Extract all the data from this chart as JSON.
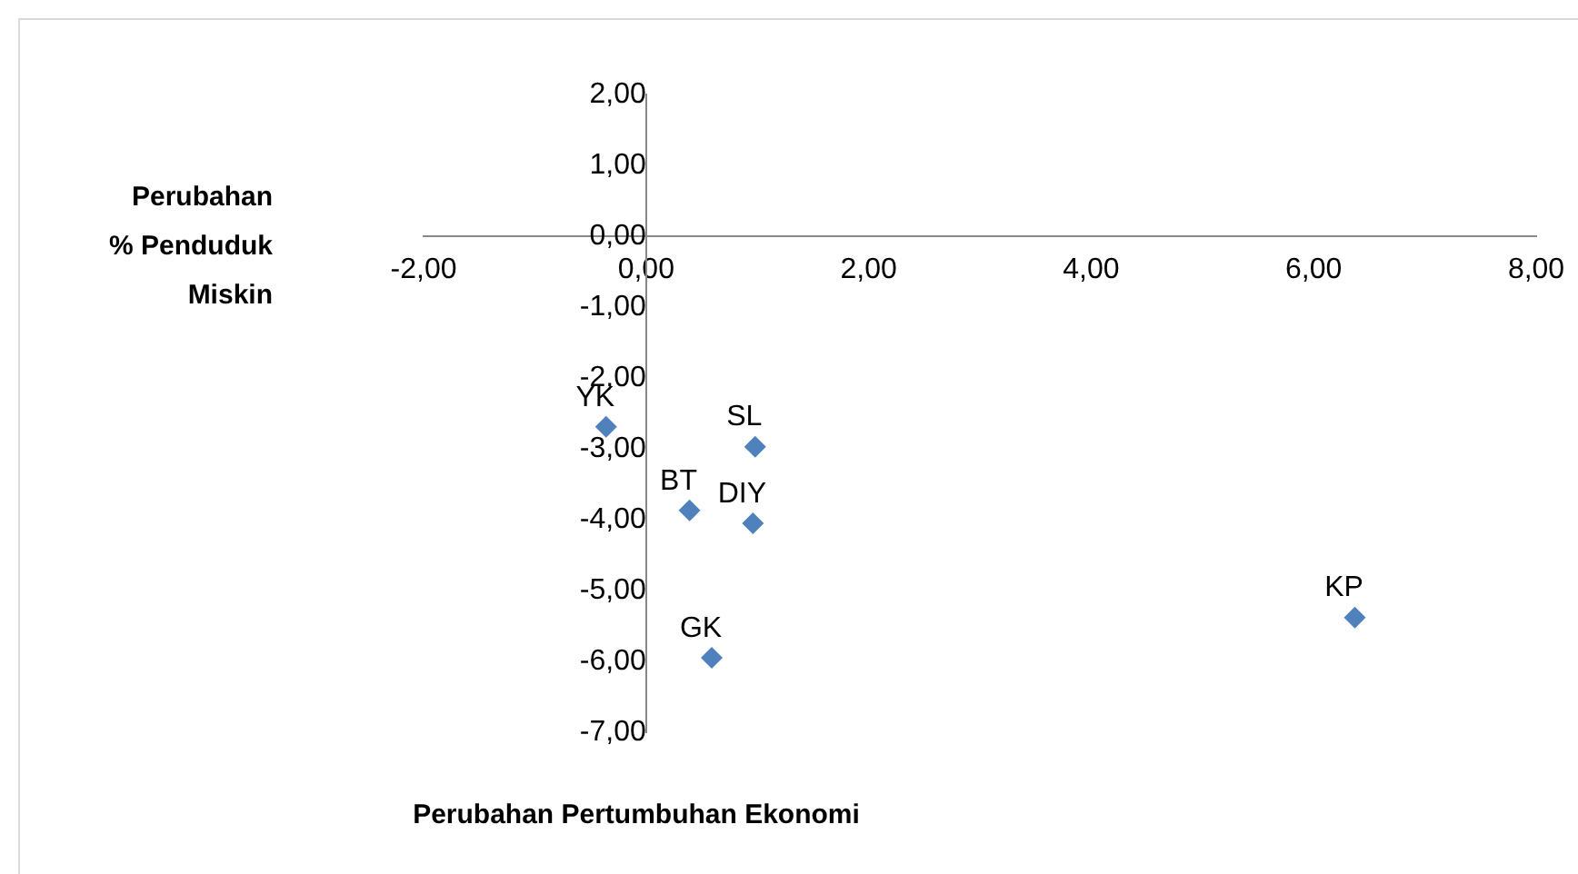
{
  "chart_data": {
    "type": "scatter",
    "xlabel": "Perubahan Pertumbuhan Ekonomi",
    "ylabel": "Perubahan\n% Penduduk\nMiskin",
    "series": [
      {
        "color": "#4f81bd",
        "x": [
          -0.36,
          0.98,
          0.39,
          0.96,
          0.59,
          6.37
        ],
        "values": [
          -2.69,
          -2.97,
          -3.87,
          -4.05,
          -5.95,
          -5.38
        ]
      }
    ],
    "marker": "diamond",
    "grid": false,
    "legend": false,
    "xlim": [
      -2,
      8
    ],
    "ylim": [
      -7,
      2
    ],
    "xticks": [
      {
        "value": -2,
        "label": "-2,00"
      },
      {
        "value": 0,
        "label": "0,00"
      },
      {
        "value": 2,
        "label": "2,00"
      },
      {
        "value": 4,
        "label": "4,00"
      },
      {
        "value": 6,
        "label": "6,00"
      },
      {
        "value": 8,
        "label": "8,00"
      }
    ],
    "yticks": [
      {
        "value": -7,
        "label": "-7,00"
      },
      {
        "value": -6,
        "label": "-6,00"
      },
      {
        "value": -5,
        "label": "-5,00"
      },
      {
        "value": -4,
        "label": "-4,00"
      },
      {
        "value": -3,
        "label": "-3,00"
      },
      {
        "value": -2,
        "label": "-2,00"
      },
      {
        "value": -1,
        "label": "-1,00"
      },
      {
        "value": 0,
        "label": "0,00"
      },
      {
        "value": 1,
        "label": "1,00"
      },
      {
        "value": 2,
        "label": "2,00"
      }
    ],
    "annotations": [
      {
        "text": "YK",
        "x": -0.36,
        "y": -2.69
      },
      {
        "text": "SL",
        "x": 0.98,
        "y": -2.97
      },
      {
        "text": "BT",
        "x": 0.39,
        "y": -3.87
      },
      {
        "text": "DIY",
        "x": 0.96,
        "y": -4.05
      },
      {
        "text": "GK",
        "x": 0.59,
        "y": -5.95
      },
      {
        "text": "KP",
        "x": 6.37,
        "y": -5.38
      }
    ]
  }
}
